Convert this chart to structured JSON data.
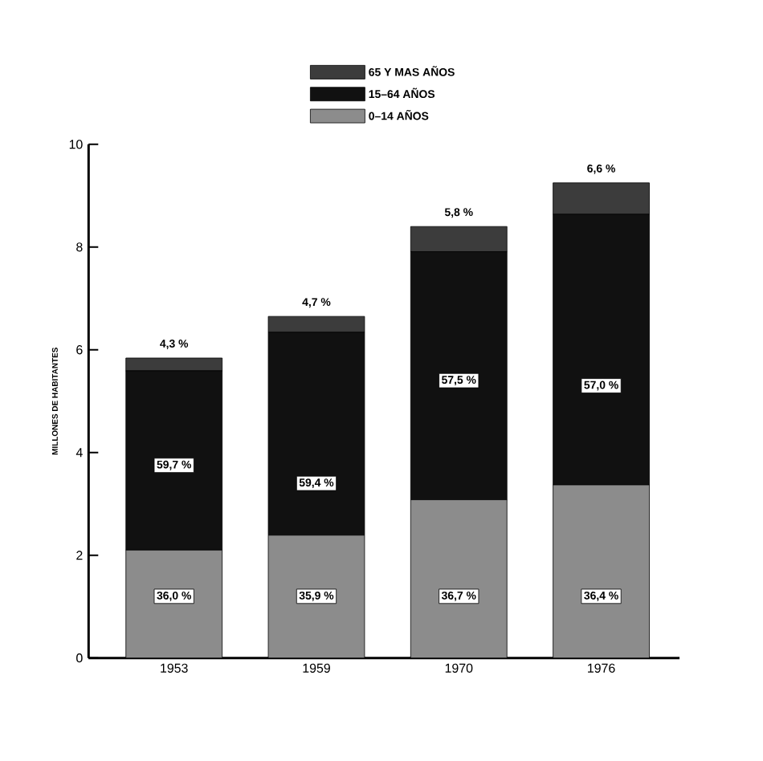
{
  "chart_data": {
    "type": "bar",
    "stacked": true,
    "ylabel": "MILLONES DE HABITANTES",
    "categories": [
      "1953",
      "1959",
      "1970",
      "1976"
    ],
    "series": [
      {
        "name": "0–14 AÑOS",
        "color": "#8c8c8c",
        "values": [
          2.1,
          2.39,
          3.08,
          3.37
        ]
      },
      {
        "name": "15–64 AÑOS",
        "color": "#111111",
        "values": [
          3.49,
          3.95,
          4.83,
          5.27
        ]
      },
      {
        "name": "65 Y MAS AÑOS",
        "color": "#3c3c3c",
        "values": [
          0.25,
          0.31,
          0.49,
          0.61
        ]
      }
    ],
    "annotations": [
      {
        "text": "36,0 %",
        "x": "1953",
        "y": 1.2
      },
      {
        "text": "35,9 %",
        "x": "1959",
        "y": 1.2
      },
      {
        "text": "36,7 %",
        "x": "1970",
        "y": 1.2
      },
      {
        "text": "36,4 %",
        "x": "1976",
        "y": 1.2
      },
      {
        "text": "59,7 %",
        "x": "1953",
        "y": 3.75
      },
      {
        "text": "59,4 %",
        "x": "1959",
        "y": 3.4
      },
      {
        "text": "57,5 %",
        "x": "1970",
        "y": 5.4
      },
      {
        "text": "57,0 %",
        "x": "1976",
        "y": 5.3
      },
      {
        "text": "4,3 %",
        "x": "1953",
        "y": 5.84
      },
      {
        "text": "4,7 %",
        "x": "1959",
        "y": 6.65
      },
      {
        "text": "5,8 %",
        "x": "1970",
        "y": 8.4
      },
      {
        "text": "6,6 %",
        "x": "1976",
        "y": 9.25
      }
    ],
    "ylim": [
      0,
      10
    ],
    "yticks": [
      0,
      2,
      4,
      6,
      8,
      10
    ],
    "legend": "top",
    "grid": false
  }
}
